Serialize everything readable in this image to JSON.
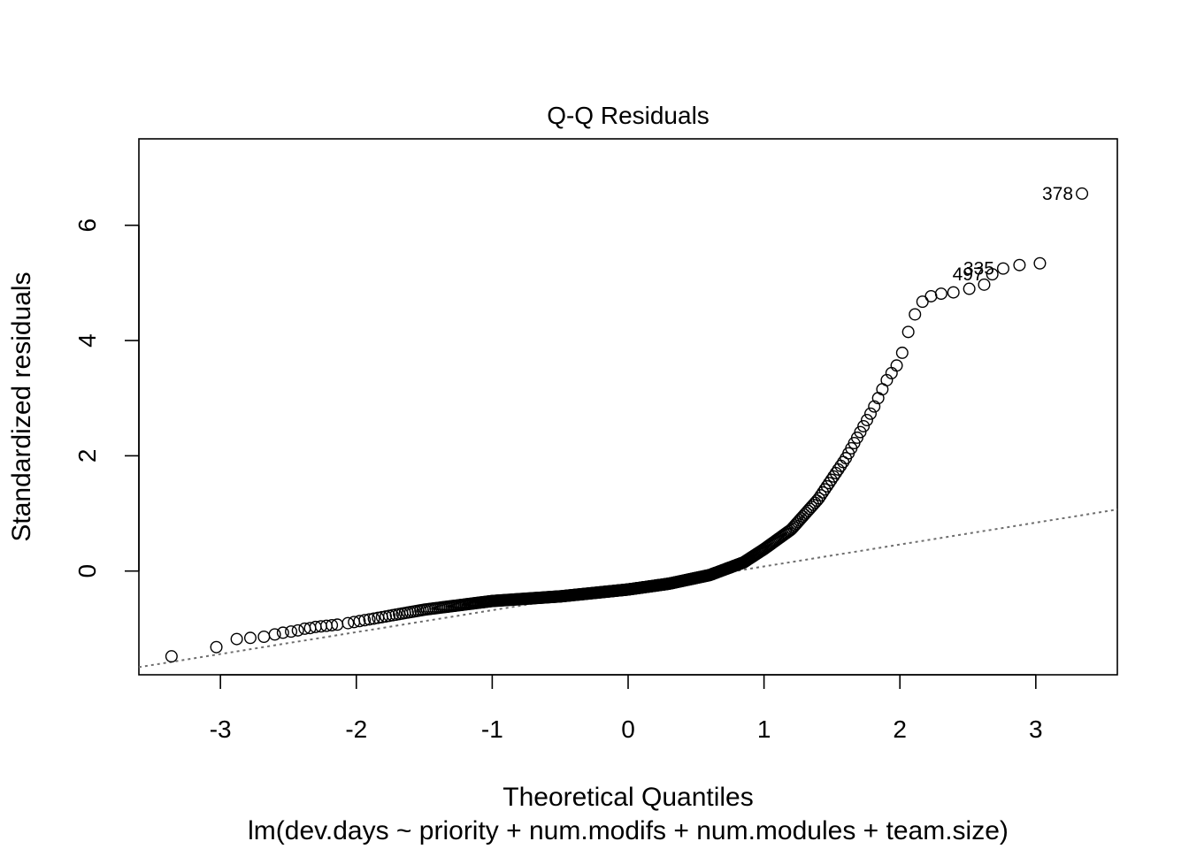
{
  "chart_data": {
    "type": "scatter",
    "title": "Q-Q Residuals",
    "xlabel": "Theoretical Quantiles",
    "ylabel": "Standardized residuals",
    "subtitle": "lm(dev.days ~ priority + num.modifs + num.modules + team.size)",
    "xlim": [
      -3.6,
      3.6
    ],
    "ylim": [
      -1.8,
      7.5
    ],
    "x_ticks": [
      -3,
      -2,
      -1,
      0,
      1,
      2,
      3
    ],
    "y_ticks": [
      0,
      2,
      4,
      6
    ],
    "grid": false,
    "reference_line": {
      "style": "dotted",
      "color": "#6e6e6e",
      "intercept": -0.3,
      "slope": 0.38
    },
    "labeled_points": [
      {
        "label": "378",
        "x": 3.34,
        "y": 6.55
      },
      {
        "label": "497",
        "x": 2.68,
        "y": 5.15
      },
      {
        "label": "335",
        "x": 2.76,
        "y": 5.25
      }
    ],
    "curve_knots": [
      [
        -2.1,
        -0.92
      ],
      [
        -1.5,
        -0.67
      ],
      [
        -1.0,
        -0.52
      ],
      [
        -0.5,
        -0.44
      ],
      [
        0.0,
        -0.32
      ],
      [
        0.3,
        -0.22
      ],
      [
        0.6,
        -0.07
      ],
      [
        0.85,
        0.15
      ],
      [
        1.0,
        0.38
      ],
      [
        1.2,
        0.72
      ],
      [
        1.4,
        1.25
      ],
      [
        1.6,
        1.95
      ],
      [
        1.8,
        2.8
      ],
      [
        1.9,
        3.3
      ],
      [
        2.0,
        3.65
      ],
      [
        2.08,
        4.3
      ],
      [
        2.15,
        4.65
      ],
      [
        2.25,
        4.8
      ],
      [
        2.45,
        4.85
      ],
      [
        2.6,
        4.97
      ]
    ],
    "extreme_points": [
      [
        -3.36,
        -1.48
      ],
      [
        -3.03,
        -1.32
      ],
      [
        -2.88,
        -1.18
      ],
      [
        -2.78,
        -1.16
      ],
      [
        -2.68,
        -1.14
      ],
      [
        -2.6,
        -1.1
      ],
      [
        -2.54,
        -1.07
      ],
      [
        -2.48,
        -1.05
      ],
      [
        -2.43,
        -1.03
      ],
      [
        -2.38,
        -1.0
      ],
      [
        -2.34,
        -0.99
      ],
      [
        -2.3,
        -0.97
      ],
      [
        -2.26,
        -0.96
      ],
      [
        -2.22,
        -0.95
      ],
      [
        -2.18,
        -0.94
      ],
      [
        -2.14,
        -0.93
      ],
      [
        2.62,
        4.97
      ],
      [
        2.68,
        5.15
      ],
      [
        2.76,
        5.25
      ],
      [
        2.88,
        5.31
      ],
      [
        3.03,
        5.34
      ],
      [
        3.34,
        6.55
      ]
    ],
    "n_interior_points": 480
  }
}
